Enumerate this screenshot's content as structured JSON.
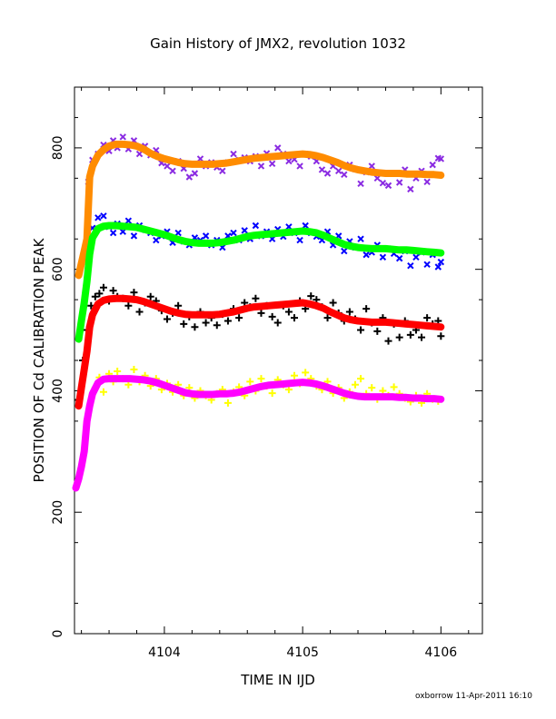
{
  "chart_data": {
    "type": "scatter",
    "title": "Gain History of JMX2, revolution 1032",
    "xlabel": "TIME IN IJD",
    "ylabel": "POSITION OF Cd CALIBRATION PEAK",
    "xlim": [
      4103.35,
      4106.3
    ],
    "ylim": [
      0,
      900
    ],
    "x_ticks": [
      "4104",
      "4105",
      "4106"
    ],
    "y_ticks": [
      "0",
      "200",
      "400",
      "600",
      "800"
    ],
    "grid": false,
    "legend": "none",
    "footer": "oxborrow 11-Apr-2011 16:10",
    "series": [
      {
        "color": "#8a2be2",
        "marker": "x",
        "style": "points",
        "x": [
          4103.45,
          4103.48,
          4103.52,
          4103.56,
          4103.6,
          4103.63,
          4103.66,
          4103.7,
          4103.74,
          4103.78,
          4103.82,
          4103.86,
          4103.9,
          4103.94,
          4103.98,
          4104.02,
          4104.06,
          4104.1,
          4104.14,
          4104.18,
          4104.22,
          4104.26,
          4104.3,
          4104.34,
          4104.38,
          4104.42,
          4104.46,
          4104.5,
          4104.54,
          4104.58,
          4104.62,
          4104.66,
          4104.7,
          4104.74,
          4104.78,
          4104.82,
          4104.86,
          4104.9,
          4104.94,
          4104.98,
          4105.02,
          4105.06,
          4105.1,
          4105.14,
          4105.18,
          4105.22,
          4105.26,
          4105.3,
          4105.34,
          4105.38,
          4105.42,
          4105.46,
          4105.5,
          4105.54,
          4105.58,
          4105.62,
          4105.66,
          4105.7,
          4105.74,
          4105.78,
          4105.82,
          4105.86,
          4105.9,
          4105.94,
          4105.98,
          4106.0
        ],
        "y": [
          744,
          780,
          790,
          805,
          795,
          812,
          800,
          818,
          798,
          812,
          790,
          803,
          788,
          796,
          775,
          770,
          762,
          778,
          766,
          752,
          758,
          782,
          770,
          776,
          768,
          762,
          776,
          790,
          780,
          784,
          778,
          786,
          770,
          791,
          774,
          800,
          790,
          778,
          781,
          770,
          790,
          786,
          778,
          764,
          758,
          770,
          762,
          756,
          772,
          765,
          741,
          760,
          770,
          750,
          742,
          738,
          758,
          743,
          764,
          732,
          750,
          762,
          744,
          772,
          783,
          782
        ]
      },
      {
        "color": "#0000ff",
        "marker": "x",
        "style": "points",
        "x": [
          4103.45,
          4103.48,
          4103.52,
          4103.56,
          4103.6,
          4103.63,
          4103.66,
          4103.7,
          4103.74,
          4103.78,
          4103.82,
          4103.86,
          4103.9,
          4103.94,
          4103.98,
          4104.02,
          4104.06,
          4104.1,
          4104.14,
          4104.18,
          4104.22,
          4104.26,
          4104.3,
          4104.34,
          4104.38,
          4104.42,
          4104.46,
          4104.5,
          4104.54,
          4104.58,
          4104.62,
          4104.66,
          4104.7,
          4104.74,
          4104.78,
          4104.82,
          4104.86,
          4104.9,
          4104.94,
          4104.98,
          4105.02,
          4105.06,
          4105.1,
          4105.14,
          4105.18,
          4105.22,
          4105.26,
          4105.3,
          4105.34,
          4105.38,
          4105.42,
          4105.46,
          4105.5,
          4105.54,
          4105.58,
          4105.62,
          4105.66,
          4105.7,
          4105.74,
          4105.78,
          4105.82,
          4105.86,
          4105.9,
          4105.94,
          4105.98,
          4106.0
        ],
        "y": [
          650,
          668,
          685,
          688,
          670,
          660,
          675,
          662,
          680,
          655,
          672,
          665,
          660,
          648,
          655,
          662,
          644,
          660,
          646,
          640,
          652,
          648,
          655,
          640,
          648,
          636,
          655,
          660,
          648,
          664,
          650,
          672,
          655,
          662,
          650,
          666,
          654,
          670,
          660,
          648,
          672,
          660,
          654,
          648,
          662,
          640,
          655,
          630,
          646,
          636,
          650,
          624,
          628,
          640,
          620,
          634,
          626,
          618,
          630,
          606,
          620,
          628,
          608,
          624,
          604,
          612
        ]
      },
      {
        "color": "#000000",
        "marker": "+",
        "style": "points",
        "x": [
          4103.38,
          4103.41,
          4103.44,
          4103.47,
          4103.5,
          4103.53,
          4103.56,
          4103.6,
          4103.63,
          4103.66,
          4103.7,
          4103.74,
          4103.78,
          4103.82,
          4103.86,
          4103.9,
          4103.94,
          4103.98,
          4104.02,
          4104.06,
          4104.1,
          4104.14,
          4104.18,
          4104.22,
          4104.26,
          4104.3,
          4104.34,
          4104.38,
          4104.42,
          4104.46,
          4104.5,
          4104.54,
          4104.58,
          4104.62,
          4104.66,
          4104.7,
          4104.74,
          4104.78,
          4104.82,
          4104.86,
          4104.9,
          4104.94,
          4104.98,
          4105.02,
          4105.06,
          4105.1,
          4105.14,
          4105.18,
          4105.22,
          4105.26,
          4105.3,
          4105.34,
          4105.38,
          4105.42,
          4105.46,
          4105.5,
          4105.54,
          4105.58,
          4105.62,
          4105.66,
          4105.7,
          4105.74,
          4105.78,
          4105.82,
          4105.86,
          4105.9,
          4105.94,
          4105.98,
          4106.0
        ],
        "y": [
          385,
          450,
          500,
          540,
          555,
          560,
          570,
          548,
          565,
          555,
          552,
          540,
          562,
          530,
          545,
          555,
          548,
          532,
          518,
          528,
          540,
          510,
          522,
          505,
          530,
          512,
          520,
          508,
          526,
          515,
          535,
          520,
          545,
          538,
          552,
          528,
          540,
          522,
          512,
          540,
          530,
          520,
          548,
          535,
          556,
          550,
          538,
          520,
          545,
          528,
          515,
          530,
          518,
          500,
          535,
          512,
          498,
          520,
          482,
          510,
          488,
          515,
          492,
          500,
          488,
          520,
          510,
          515,
          490
        ]
      },
      {
        "color": "#ffff00",
        "marker": "+",
        "style": "points",
        "x": [
          4103.5,
          4103.53,
          4103.56,
          4103.6,
          4103.63,
          4103.66,
          4103.7,
          4103.74,
          4103.78,
          4103.82,
          4103.86,
          4103.9,
          4103.94,
          4103.98,
          4104.02,
          4104.06,
          4104.1,
          4104.14,
          4104.18,
          4104.22,
          4104.26,
          4104.3,
          4104.34,
          4104.38,
          4104.42,
          4104.46,
          4104.5,
          4104.54,
          4104.58,
          4104.62,
          4104.66,
          4104.7,
          4104.74,
          4104.78,
          4104.82,
          4104.86,
          4104.9,
          4104.94,
          4104.98,
          4105.02,
          4105.06,
          4105.1,
          4105.14,
          4105.18,
          4105.22,
          4105.26,
          4105.3,
          4105.34,
          4105.38,
          4105.42,
          4105.46,
          4105.5,
          4105.54,
          4105.58,
          4105.62,
          4105.66,
          4105.7,
          4105.74,
          4105.78,
          4105.82,
          4105.86,
          4105.9,
          4105.94,
          4105.98
        ],
        "y": [
          405,
          422,
          398,
          428,
          415,
          432,
          420,
          410,
          435,
          415,
          425,
          408,
          420,
          402,
          412,
          398,
          410,
          392,
          405,
          388,
          400,
          392,
          385,
          395,
          402,
          380,
          398,
          406,
          392,
          415,
          400,
          420,
          408,
          396,
          418,
          410,
          402,
          425,
          412,
          430,
          420,
          408,
          402,
          415,
          396,
          405,
          388,
          398,
          410,
          420,
          395,
          405,
          386,
          400,
          392,
          406,
          395,
          388,
          382,
          392,
          380,
          395,
          386,
          383
        ]
      },
      {
        "color": "#ff8c00",
        "marker": "+",
        "style": "line",
        "x": [
          4103.38,
          4103.4,
          4103.42,
          4103.44,
          4103.46,
          4103.48,
          4103.52,
          4103.56,
          4103.6,
          4103.65,
          4103.7,
          4103.75,
          4103.8,
          4103.85,
          4103.9,
          4103.95,
          4104.0,
          4104.05,
          4104.1,
          4104.15,
          4104.2,
          4104.25,
          4104.3,
          4104.35,
          4104.4,
          4104.45,
          4104.5,
          4104.55,
          4104.6,
          4104.65,
          4104.7,
          4104.75,
          4104.8,
          4104.85,
          4104.9,
          4104.95,
          4105.0,
          4105.05,
          4105.1,
          4105.15,
          4105.2,
          4105.25,
          4105.3,
          4105.35,
          4105.4,
          4105.45,
          4105.5,
          4105.55,
          4105.6,
          4105.65,
          4105.7,
          4105.75,
          4105.8,
          4105.85,
          4105.9,
          4105.95,
          4106.0
        ],
        "y": [
          590,
          610,
          630,
          650,
          752,
          770,
          788,
          797,
          803,
          806,
          806,
          805,
          803,
          798,
          791,
          786,
          782,
          779,
          776,
          774,
          773,
          773,
          773,
          773,
          774,
          775,
          777,
          779,
          781,
          783,
          784,
          785,
          786,
          787,
          788,
          789,
          790,
          789,
          787,
          784,
          780,
          776,
          771,
          767,
          764,
          762,
          760,
          759,
          758,
          758,
          758,
          757,
          757,
          757,
          756,
          756,
          755
        ]
      },
      {
        "color": "#00ff00",
        "marker": "+",
        "style": "line",
        "x": [
          4103.38,
          4103.4,
          4103.42,
          4103.44,
          4103.46,
          4103.48,
          4103.52,
          4103.56,
          4103.6,
          4103.65,
          4103.7,
          4103.75,
          4103.8,
          4103.85,
          4103.9,
          4103.95,
          4104.0,
          4104.05,
          4104.1,
          4104.15,
          4104.2,
          4104.25,
          4104.3,
          4104.35,
          4104.4,
          4104.45,
          4104.5,
          4104.55,
          4104.6,
          4104.65,
          4104.7,
          4104.75,
          4104.8,
          4104.85,
          4104.9,
          4104.95,
          4105.0,
          4105.05,
          4105.1,
          4105.15,
          4105.2,
          4105.25,
          4105.3,
          4105.35,
          4105.4,
          4105.45,
          4105.5,
          4105.55,
          4105.6,
          4105.65,
          4105.7,
          4105.75,
          4105.8,
          4105.85,
          4105.9,
          4105.95,
          4106.0
        ],
        "y": [
          485,
          515,
          545,
          580,
          625,
          652,
          667,
          671,
          672,
          672,
          671,
          670,
          669,
          666,
          663,
          660,
          657,
          653,
          649,
          646,
          644,
          643,
          643,
          643,
          644,
          646,
          648,
          651,
          654,
          656,
          657,
          658,
          659,
          660,
          661,
          662,
          663,
          662,
          660,
          656,
          651,
          646,
          641,
          638,
          636,
          635,
          634,
          634,
          634,
          633,
          632,
          632,
          631,
          630,
          629,
          628,
          627
        ]
      },
      {
        "color": "#ff0000",
        "marker": "+",
        "style": "line",
        "x": [
          4103.38,
          4103.4,
          4103.42,
          4103.44,
          4103.46,
          4103.48,
          4103.52,
          4103.56,
          4103.6,
          4103.65,
          4103.7,
          4103.75,
          4103.8,
          4103.85,
          4103.9,
          4103.95,
          4104.0,
          4104.05,
          4104.1,
          4104.15,
          4104.2,
          4104.25,
          4104.3,
          4104.35,
          4104.4,
          4104.45,
          4104.5,
          4104.55,
          4104.6,
          4104.65,
          4104.7,
          4104.75,
          4104.8,
          4104.85,
          4104.9,
          4104.95,
          4105.0,
          4105.05,
          4105.1,
          4105.15,
          4105.2,
          4105.25,
          4105.3,
          4105.35,
          4105.4,
          4105.45,
          4105.5,
          4105.55,
          4105.6,
          4105.65,
          4105.7,
          4105.75,
          4105.8,
          4105.85,
          4105.9,
          4105.95,
          4106.0
        ],
        "y": [
          375,
          405,
          435,
          465,
          505,
          525,
          543,
          549,
          551,
          552,
          552,
          551,
          550,
          547,
          543,
          539,
          535,
          531,
          528,
          526,
          525,
          525,
          525,
          525,
          526,
          528,
          530,
          533,
          536,
          538,
          539,
          540,
          541,
          542,
          543,
          544,
          545,
          543,
          540,
          536,
          530,
          525,
          520,
          517,
          515,
          514,
          513,
          513,
          513,
          512,
          511,
          510,
          509,
          508,
          507,
          506,
          505
        ]
      },
      {
        "color": "#ff00ff",
        "marker": "+",
        "style": "line",
        "x": [
          4103.36,
          4103.38,
          4103.4,
          4103.42,
          4103.44,
          4103.46,
          4103.48,
          4103.52,
          4103.56,
          4103.6,
          4103.65,
          4103.7,
          4103.75,
          4103.8,
          4103.85,
          4103.9,
          4103.95,
          4104.0,
          4104.05,
          4104.1,
          4104.15,
          4104.2,
          4104.25,
          4104.3,
          4104.35,
          4104.4,
          4104.45,
          4104.5,
          4104.55,
          4104.6,
          4104.65,
          4104.7,
          4104.75,
          4104.8,
          4104.85,
          4104.9,
          4104.95,
          4105.0,
          4105.05,
          4105.1,
          4105.15,
          4105.2,
          4105.25,
          4105.3,
          4105.35,
          4105.4,
          4105.45,
          4105.5,
          4105.55,
          4105.6,
          4105.65,
          4105.7,
          4105.75,
          4105.8,
          4105.85,
          4105.9,
          4105.95,
          4106.0
        ],
        "y": [
          240,
          255,
          275,
          300,
          350,
          375,
          395,
          413,
          419,
          420,
          420,
          420,
          420,
          419,
          418,
          416,
          413,
          409,
          405,
          401,
          397,
          395,
          394,
          394,
          394,
          395,
          395,
          396,
          398,
          401,
          404,
          407,
          409,
          410,
          411,
          412,
          413,
          414,
          413,
          411,
          408,
          404,
          400,
          396,
          393,
          391,
          390,
          390,
          390,
          390,
          390,
          389,
          389,
          388,
          388,
          387,
          387,
          386
        ]
      }
    ]
  }
}
